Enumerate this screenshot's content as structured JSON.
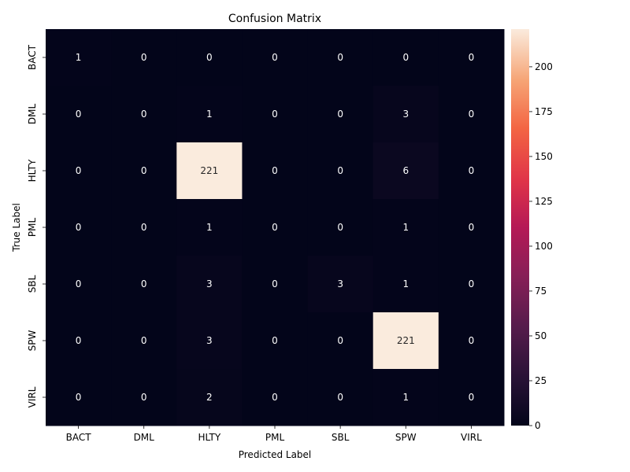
{
  "chart_data": {
    "type": "heatmap",
    "title": "Confusion Matrix",
    "xlabel": "Predicted Label",
    "ylabel": "True Label",
    "x_categories": [
      "BACT",
      "DML",
      "HLTY",
      "PML",
      "SBL",
      "SPW",
      "VIRL"
    ],
    "y_categories": [
      "BACT",
      "DML",
      "HLTY",
      "PML",
      "SBL",
      "SPW",
      "VIRL"
    ],
    "values": [
      [
        1,
        0,
        0,
        0,
        0,
        0,
        0
      ],
      [
        0,
        0,
        1,
        0,
        0,
        3,
        0
      ],
      [
        0,
        0,
        221,
        0,
        0,
        6,
        0
      ],
      [
        0,
        0,
        1,
        0,
        0,
        1,
        0
      ],
      [
        0,
        0,
        3,
        0,
        3,
        1,
        0
      ],
      [
        0,
        0,
        3,
        0,
        0,
        221,
        0
      ],
      [
        0,
        0,
        2,
        0,
        0,
        1,
        0
      ]
    ],
    "colorbar": {
      "min": 0,
      "max": 221,
      "ticks": [
        0,
        25,
        50,
        75,
        100,
        125,
        150,
        175,
        200
      ],
      "colormap": "rocket"
    },
    "grid": false
  }
}
